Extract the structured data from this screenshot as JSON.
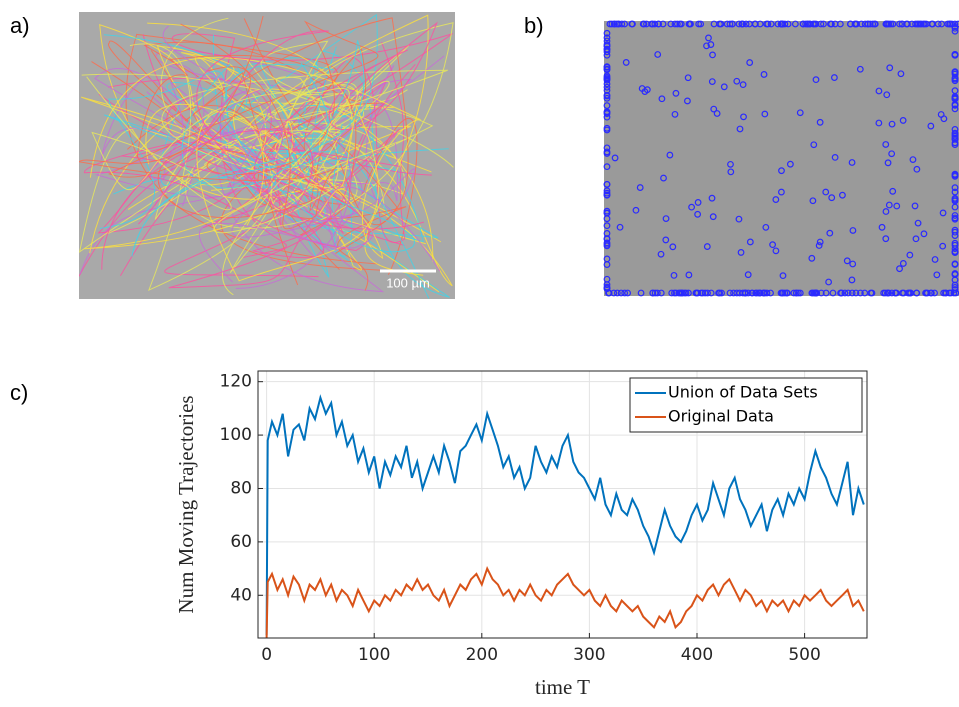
{
  "labels": {
    "a": "a)",
    "b": "b)",
    "c": "c)"
  },
  "scale_bar": "100 µm",
  "chart_data": {
    "type": "line",
    "xlabel": "time T",
    "ylabel": "Num Moving Trajectories",
    "xlim": [
      -8,
      558
    ],
    "ylim": [
      24,
      124
    ],
    "xticks": [
      0,
      100,
      200,
      300,
      400,
      500
    ],
    "yticks": [
      40,
      60,
      80,
      100,
      120
    ],
    "grid": true,
    "legend": "upper right",
    "x": [
      0,
      1,
      5,
      10,
      15,
      20,
      25,
      30,
      35,
      40,
      45,
      50,
      55,
      60,
      65,
      70,
      75,
      80,
      85,
      90,
      95,
      100,
      105,
      110,
      115,
      120,
      125,
      130,
      135,
      140,
      145,
      150,
      155,
      160,
      165,
      170,
      175,
      180,
      185,
      190,
      195,
      200,
      205,
      210,
      215,
      220,
      225,
      230,
      235,
      240,
      245,
      250,
      255,
      260,
      265,
      270,
      275,
      280,
      285,
      290,
      295,
      300,
      305,
      310,
      315,
      320,
      325,
      330,
      335,
      340,
      345,
      350,
      355,
      360,
      365,
      370,
      375,
      380,
      385,
      390,
      395,
      400,
      405,
      410,
      415,
      420,
      425,
      430,
      435,
      440,
      445,
      450,
      455,
      460,
      465,
      470,
      475,
      480,
      485,
      490,
      495,
      500,
      505,
      510,
      515,
      520,
      525,
      530,
      535,
      540,
      545,
      550,
      555
    ],
    "series": [
      {
        "name": "Union of Data Sets",
        "color": "#0072bd",
        "values": [
          25,
          98,
          105,
          100,
          108,
          92,
          102,
          104,
          98,
          110,
          106,
          114,
          108,
          112,
          100,
          105,
          96,
          100,
          90,
          95,
          86,
          92,
          80,
          90,
          85,
          92,
          88,
          96,
          84,
          90,
          80,
          86,
          92,
          86,
          96,
          90,
          82,
          94,
          96,
          100,
          104,
          98,
          108,
          102,
          96,
          88,
          92,
          84,
          88,
          80,
          84,
          96,
          90,
          86,
          92,
          88,
          96,
          100,
          90,
          86,
          84,
          80,
          76,
          84,
          74,
          70,
          78,
          72,
          70,
          76,
          72,
          66,
          62,
          56,
          64,
          72,
          66,
          62,
          60,
          64,
          70,
          74,
          68,
          72,
          82,
          76,
          70,
          80,
          84,
          76,
          72,
          66,
          70,
          74,
          64,
          72,
          76,
          70,
          78,
          74,
          80,
          76,
          86,
          94,
          88,
          84,
          78,
          74,
          82,
          90,
          70,
          80,
          74
        ]
      },
      {
        "name": "Original Data",
        "color": "#d95319",
        "values": [
          24,
          45,
          48,
          42,
          46,
          40,
          47,
          44,
          38,
          44,
          42,
          46,
          40,
          44,
          38,
          42,
          40,
          36,
          42,
          38,
          34,
          38,
          36,
          40,
          38,
          42,
          40,
          44,
          42,
          46,
          42,
          44,
          40,
          38,
          42,
          36,
          40,
          44,
          42,
          46,
          48,
          44,
          50,
          46,
          44,
          40,
          42,
          38,
          42,
          40,
          44,
          40,
          38,
          42,
          40,
          44,
          46,
          48,
          44,
          42,
          40,
          42,
          38,
          36,
          40,
          36,
          34,
          38,
          36,
          34,
          36,
          32,
          30,
          28,
          32,
          30,
          34,
          28,
          30,
          34,
          36,
          40,
          38,
          42,
          44,
          40,
          44,
          46,
          42,
          38,
          42,
          40,
          36,
          38,
          34,
          38,
          36,
          38,
          34,
          38,
          36,
          40,
          38,
          40,
          42,
          38,
          36,
          38,
          40,
          42,
          36,
          38,
          34
        ]
      }
    ]
  }
}
